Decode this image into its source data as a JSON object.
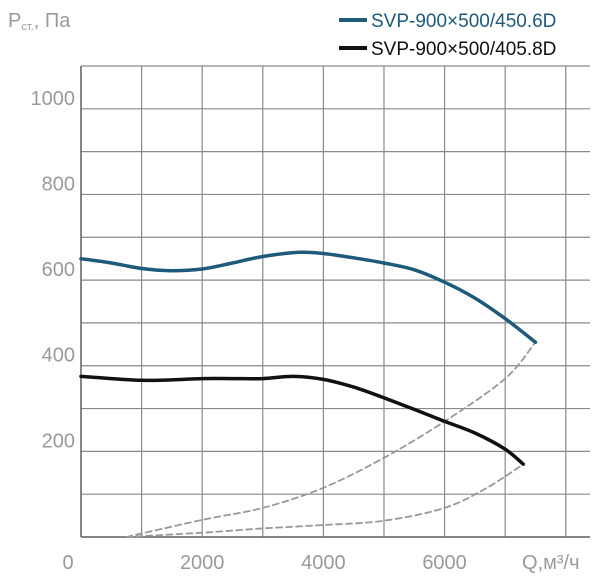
{
  "chart_data": {
    "type": "line",
    "title": "",
    "ylabel": {
      "main": "P",
      "sub": "ст.",
      "rest": ", Па"
    },
    "xlabel": "Q,м³/ч",
    "xlim": [
      0,
      8400
    ],
    "ylim": [
      0,
      1100
    ],
    "x_gridlines": [
      0,
      1000,
      2000,
      3000,
      4000,
      5000,
      6000,
      7000,
      8000
    ],
    "y_gridlines": [
      0,
      100,
      200,
      300,
      400,
      500,
      600,
      700,
      800,
      900,
      1000,
      1100
    ],
    "x_tick_labels": [
      {
        "value": 0,
        "label": "0"
      },
      {
        "value": 2000,
        "label": "2000"
      },
      {
        "value": 4000,
        "label": "4000"
      },
      {
        "value": 6000,
        "label": "6000"
      }
    ],
    "y_tick_labels": [
      {
        "value": 200,
        "label": "200"
      },
      {
        "value": 400,
        "label": "400"
      },
      {
        "value": 600,
        "label": "600"
      },
      {
        "value": 800,
        "label": "800"
      },
      {
        "value": 1000,
        "label": "1000"
      }
    ],
    "grid": true,
    "legend_position": "top-right",
    "series": [
      {
        "name": "SVP-900×500/450.6D",
        "color": "#1e5a7a",
        "style": "solid",
        "points": [
          [
            0,
            650
          ],
          [
            500,
            640
          ],
          [
            1000,
            627
          ],
          [
            1500,
            622
          ],
          [
            2000,
            626
          ],
          [
            2500,
            640
          ],
          [
            3000,
            655
          ],
          [
            3600,
            665
          ],
          [
            4000,
            662
          ],
          [
            4500,
            652
          ],
          [
            5000,
            640
          ],
          [
            5500,
            624
          ],
          [
            6000,
            595
          ],
          [
            6500,
            558
          ],
          [
            7000,
            510
          ],
          [
            7500,
            455
          ]
        ]
      },
      {
        "name": "SVP-900×500/405.8D",
        "color": "#111111",
        "style": "solid",
        "points": [
          [
            0,
            375
          ],
          [
            500,
            370
          ],
          [
            1000,
            366
          ],
          [
            1500,
            367
          ],
          [
            2000,
            370
          ],
          [
            2500,
            370
          ],
          [
            3000,
            370
          ],
          [
            3500,
            375
          ],
          [
            4000,
            368
          ],
          [
            4500,
            350
          ],
          [
            5000,
            325
          ],
          [
            5500,
            298
          ],
          [
            6000,
            270
          ],
          [
            6500,
            243
          ],
          [
            7000,
            205
          ],
          [
            7300,
            170
          ]
        ]
      },
      {
        "name": "",
        "color": "#999999",
        "style": "dashed",
        "points": [
          [
            750,
            0
          ],
          [
            2000,
            40
          ],
          [
            3000,
            68
          ],
          [
            4000,
            115
          ],
          [
            5000,
            185
          ],
          [
            6000,
            270
          ],
          [
            7000,
            370
          ],
          [
            7500,
            455
          ]
        ]
      },
      {
        "name": "",
        "color": "#999999",
        "style": "dashed",
        "points": [
          [
            750,
            0
          ],
          [
            2000,
            10
          ],
          [
            3000,
            20
          ],
          [
            4000,
            28
          ],
          [
            5000,
            38
          ],
          [
            6000,
            68
          ],
          [
            6700,
            115
          ],
          [
            7300,
            170
          ]
        ]
      }
    ]
  }
}
